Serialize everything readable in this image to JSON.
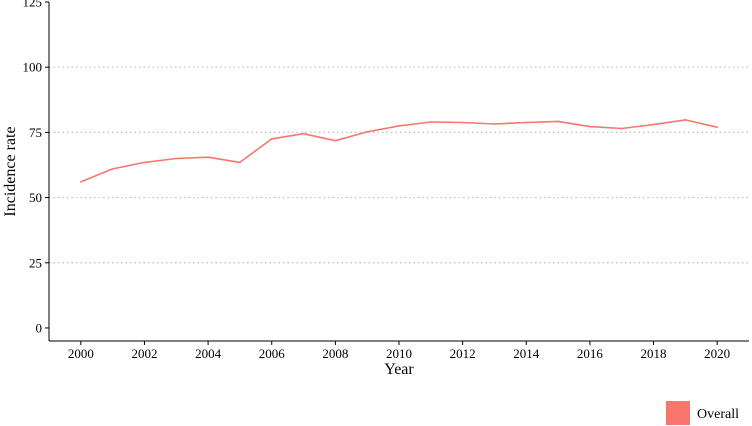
{
  "chart_data": {
    "type": "line",
    "xlabel": "Year",
    "ylabel": "Incidence rate",
    "xlim": [
      1999,
      2021
    ],
    "ylim": [
      -5,
      125
    ],
    "xticks": [
      2000,
      2002,
      2004,
      2006,
      2008,
      2010,
      2012,
      2014,
      2016,
      2018,
      2020
    ],
    "yticks": [
      0,
      25,
      50,
      75,
      100,
      125
    ],
    "grid": "horizontal dotted",
    "legend_position": "bottom-right",
    "series": [
      {
        "name": "Overall",
        "color": "#F8766D",
        "x": [
          2000,
          2001,
          2002,
          2003,
          2004,
          2005,
          2006,
          2007,
          2008,
          2009,
          2010,
          2011,
          2012,
          2013,
          2014,
          2015,
          2016,
          2017,
          2018,
          2019,
          2020
        ],
        "y": [
          56.0,
          61.0,
          63.5,
          65.0,
          65.5,
          63.5,
          72.5,
          74.5,
          71.8,
          75.2,
          77.5,
          79.0,
          78.8,
          78.2,
          78.8,
          79.2,
          77.2,
          76.5,
          78.0,
          79.8,
          77.0
        ]
      }
    ]
  }
}
